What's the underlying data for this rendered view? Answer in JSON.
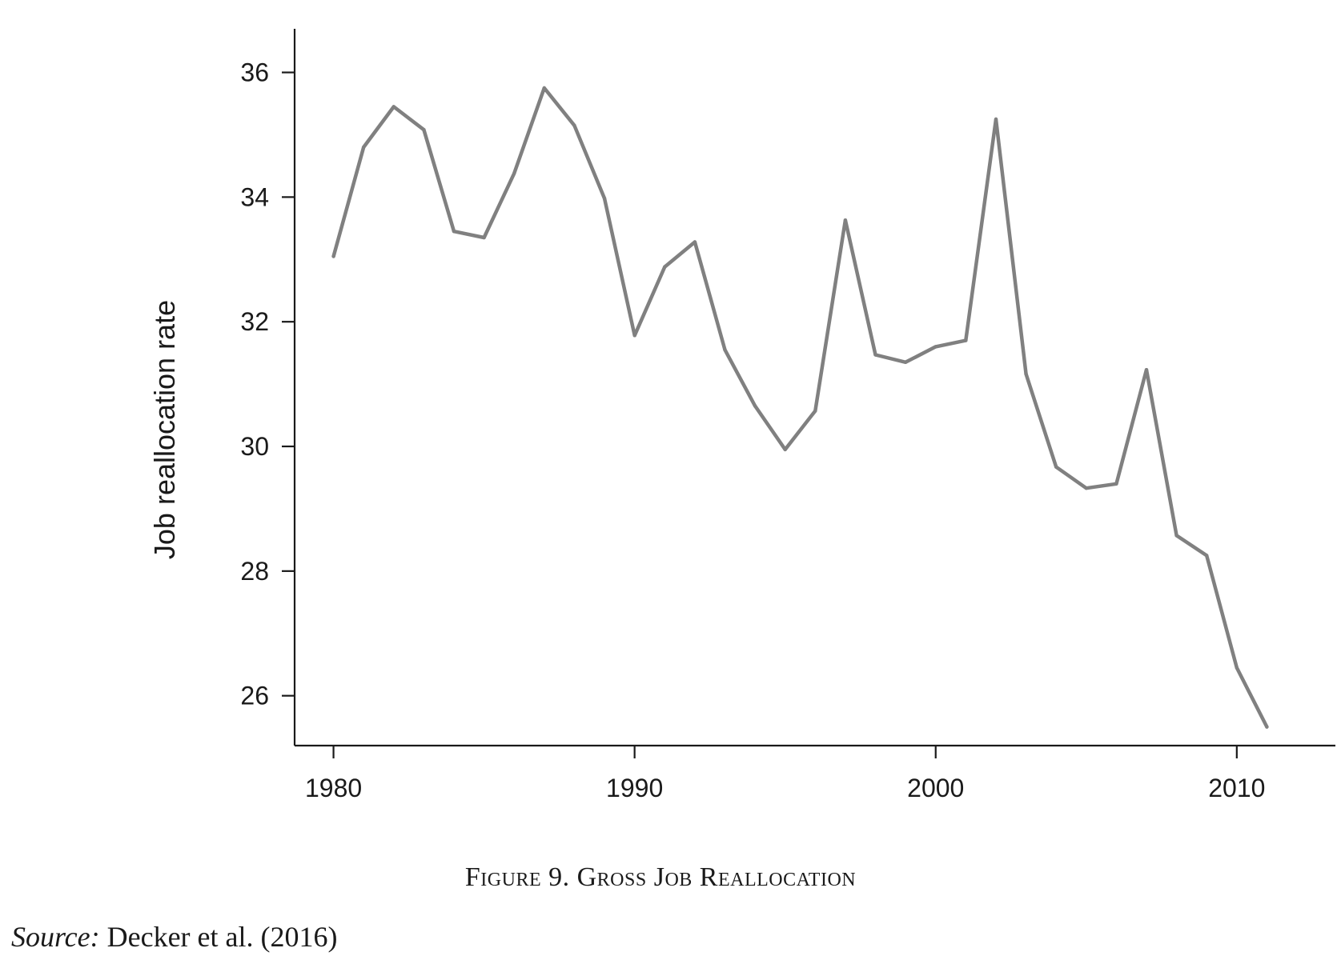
{
  "chart_data": {
    "type": "line",
    "title": "",
    "xlabel": "",
    "ylabel": "Job reallocation rate",
    "xlim": [
      1979.4,
      2011.6
    ],
    "ylim": [
      25.2,
      36.7
    ],
    "xticks": [
      1980,
      1990,
      2000,
      2010
    ],
    "yticks": [
      26,
      28,
      30,
      32,
      34,
      36
    ],
    "grid": false,
    "legend": "none",
    "series_color": "#808080",
    "x": [
      1980,
      1981,
      1982,
      1983,
      1984,
      1985,
      1986,
      1987,
      1988,
      1989,
      1990,
      1991,
      1992,
      1993,
      1994,
      1995,
      1996,
      1997,
      1998,
      1999,
      2000,
      2001,
      2002,
      2003,
      2004,
      2005,
      2006,
      2007,
      2008,
      2009,
      2010,
      2011
    ],
    "series": [
      {
        "values": [
          33.05,
          34.8,
          35.45,
          35.08,
          33.45,
          33.35,
          34.38,
          35.75,
          35.15,
          33.98,
          31.78,
          32.88,
          33.28,
          31.55,
          30.65,
          29.95,
          30.57,
          33.63,
          31.47,
          31.35,
          31.6,
          31.7,
          35.25,
          31.16,
          29.67,
          29.33,
          29.4,
          31.23,
          28.57,
          28.25,
          26.45,
          25.5
        ]
      }
    ]
  },
  "caption": {
    "text": "Figure 9. Gross Job Reallocation"
  },
  "source": {
    "label": "Source:",
    "text": " Decker et al. (2016)"
  }
}
